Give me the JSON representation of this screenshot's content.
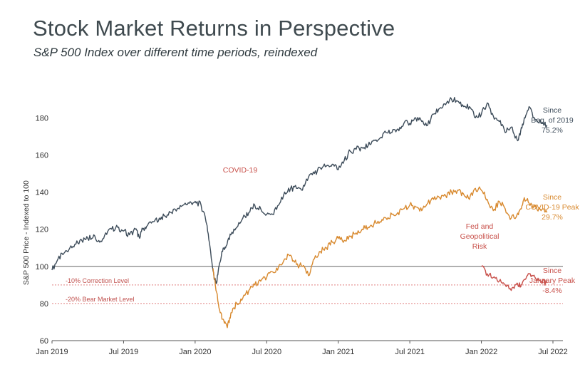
{
  "title": "Stock Market Returns in Perspective",
  "subtitle": "S&P 500 Index over different time periods, reindexed",
  "chart_data": {
    "type": "line",
    "ylabel": "S&P 500 Price - Indexed to 100",
    "xlabel": "",
    "ylim": [
      60,
      192
    ],
    "y_ticks": [
      "60",
      "80",
      "100",
      "120",
      "140",
      "160",
      "180"
    ],
    "x_ticks": [
      "Jan 2019",
      "Jul 2019",
      "Jan 2020",
      "Jul 2020",
      "Jan 2021",
      "Jul 2021",
      "Jan 2022",
      "Jul 2022"
    ],
    "x_unit": "months since Jan 2019",
    "reference_lines": [
      {
        "value": 100,
        "label": "",
        "color": "#666666",
        "style": "solid"
      },
      {
        "value": 90,
        "label": "-10% Correction Level",
        "color": "#e08080",
        "style": "dotted"
      },
      {
        "value": 80,
        "label": "-20% Bear Market Level",
        "color": "#e08080",
        "style": "dotted"
      }
    ],
    "series": [
      {
        "name": "Since Beg. of 2019",
        "label_lines": [
          "Since",
          "Beg. of 2019",
          "75.2%"
        ],
        "color": "#3d4c5a",
        "x": [
          0,
          0.5,
          1,
          1.5,
          2,
          2.5,
          3,
          3.5,
          4,
          4.5,
          5,
          5.5,
          6,
          6.5,
          7,
          7.3,
          7.6,
          8,
          8.5,
          9,
          9.5,
          10,
          10.5,
          11,
          11.5,
          12,
          12.5,
          13,
          13.3,
          13.6,
          13.8,
          14,
          14.3,
          14.6,
          15,
          15.5,
          16,
          16.5,
          17,
          17.5,
          18,
          18.5,
          19,
          19.5,
          20,
          20.5,
          21,
          21.5,
          22,
          22.5,
          23,
          23.5,
          24,
          24.5,
          25,
          25.5,
          26,
          26.5,
          27,
          27.5,
          28,
          28.5,
          29,
          29.5,
          30,
          30.5,
          31,
          31.5,
          32,
          32.5,
          33,
          33.5,
          34,
          34.5,
          35,
          35.5,
          36,
          36.5,
          37,
          37.5,
          38,
          38.5,
          39,
          39.3,
          39.6,
          40,
          40.5,
          41,
          41.5
        ],
        "values": [
          98,
          104,
          107,
          110,
          112,
          114,
          115,
          117,
          113,
          118,
          120,
          121,
          119,
          117,
          120,
          116,
          120,
          122,
          124,
          126,
          127,
          129,
          131,
          133,
          134,
          135,
          133,
          122,
          108,
          93,
          91,
          100,
          108,
          111,
          117,
          121,
          126,
          129,
          133,
          131,
          128,
          128,
          133,
          140,
          142,
          142,
          141,
          148,
          150,
          153,
          154,
          155,
          152,
          157,
          162,
          163,
          164,
          165,
          168,
          169,
          172,
          172,
          174,
          177,
          177,
          180,
          178,
          176,
          182,
          185,
          187,
          190,
          189,
          186,
          186,
          180,
          182,
          188,
          181,
          178,
          172,
          175,
          168,
          173,
          180,
          186,
          179,
          177,
          176
        ]
      },
      {
        "name": "Since COVID-19 Peak",
        "label_lines": [
          "Since",
          "COVID-19 Peak",
          "29.7%"
        ],
        "color": "#d8892e",
        "x": [
          13.5,
          13.8,
          14.1,
          14.4,
          14.7,
          15,
          15.5,
          16,
          16.5,
          17,
          17.5,
          18,
          18.5,
          19,
          19.5,
          20,
          20.5,
          21,
          21.5,
          22,
          22.5,
          23,
          23.5,
          24,
          24.5,
          25,
          25.5,
          26,
          26.5,
          27,
          27.5,
          28,
          28.5,
          29,
          29.5,
          30,
          30.5,
          31,
          31.5,
          32,
          32.5,
          33,
          33.5,
          34,
          34.5,
          35,
          35.5,
          36,
          36.5,
          37,
          37.5,
          38,
          38.5,
          39,
          39.3,
          39.6,
          40,
          40.5,
          41,
          41.5
        ],
        "values": [
          99,
          86,
          75,
          71,
          67,
          75,
          80,
          83,
          87,
          90,
          92,
          94,
          97,
          100,
          104,
          106,
          101,
          100,
          95,
          104,
          108,
          110,
          113,
          115,
          114,
          116,
          118,
          120,
          121,
          123,
          124,
          126,
          128,
          129,
          131,
          133,
          132,
          130,
          134,
          136,
          137,
          138,
          140,
          141,
          139,
          136,
          142,
          141,
          136,
          130,
          135,
          131,
          126,
          128,
          131,
          137,
          134,
          132,
          130,
          129
        ]
      },
      {
        "name": "Since January Peak",
        "label_lines": [
          "Since",
          "January Peak",
          "-8.4%"
        ],
        "color": "#c8504a",
        "x": [
          36,
          36.5,
          37,
          37.5,
          38,
          38.5,
          39,
          39.3,
          39.6,
          40,
          40.5,
          41,
          41.5
        ],
        "values": [
          100,
          96,
          94,
          92,
          90,
          87,
          91,
          89,
          93,
          96,
          94,
          92,
          91
        ]
      }
    ],
    "annotations": [
      {
        "text": "COVID-19",
        "color": "#c8504a"
      },
      {
        "lines": [
          "Fed and",
          "Geopolitical",
          "Risk"
        ],
        "color": "#c8504a"
      }
    ],
    "grid": false,
    "legend": "none"
  }
}
